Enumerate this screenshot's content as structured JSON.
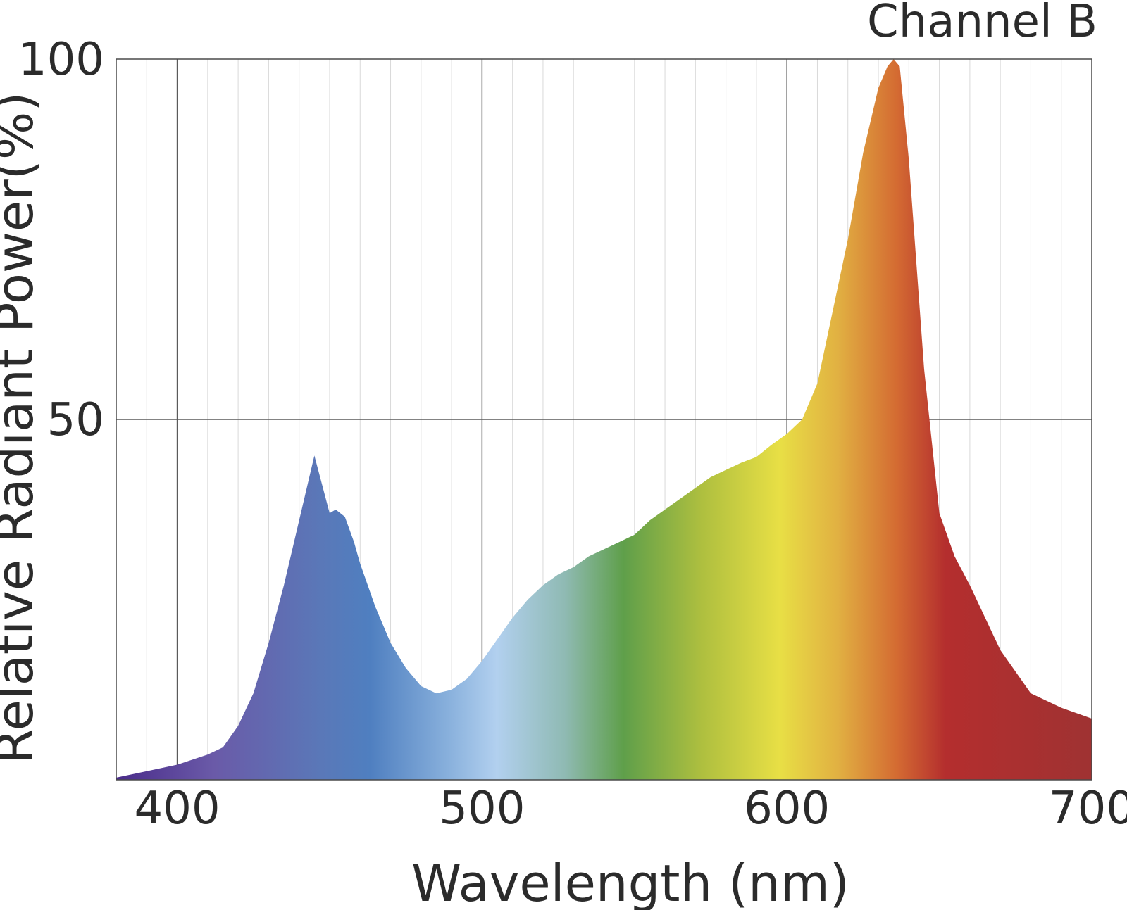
{
  "chart_data": {
    "type": "area",
    "title": "Channel B",
    "xlabel": "Wavelength (nm)",
    "ylabel": "Relative Radiant Power(%)",
    "xlim": [
      380,
      700
    ],
    "ylim": [
      0,
      100
    ],
    "x_major_ticks": [
      400,
      500,
      600,
      700
    ],
    "x_tick_labels": [
      "400",
      "500",
      "600",
      "700"
    ],
    "x_minor_step": 10,
    "y_ticks": [
      50,
      100
    ],
    "y_tick_labels": [
      "50",
      "100"
    ],
    "grid": true,
    "fill": "spectral-gradient",
    "series": [
      {
        "x": [
          380,
          390,
          400,
          410,
          415,
          420,
          425,
          430,
          435,
          440,
          445,
          450,
          452,
          455,
          458,
          460,
          465,
          470,
          475,
          480,
          485,
          490,
          495,
          500,
          505,
          510,
          515,
          520,
          525,
          530,
          535,
          540,
          545,
          550,
          555,
          560,
          565,
          570,
          575,
          580,
          585,
          590,
          595,
          600,
          605,
          610,
          615,
          620,
          625,
          630,
          633,
          635,
          637,
          640,
          645,
          650,
          655,
          660,
          670,
          680,
          690,
          700
        ],
        "y": [
          0.3,
          1.2,
          2.1,
          3.5,
          4.5,
          7.5,
          12,
          19,
          27,
          36,
          45,
          37,
          37.5,
          36.5,
          33,
          30,
          24,
          19,
          15.5,
          13,
          12,
          12.5,
          14,
          16.5,
          19.5,
          22.5,
          25,
          27,
          28.5,
          29.5,
          31,
          32,
          33,
          34,
          36,
          37.5,
          39,
          40.5,
          42,
          43,
          44,
          44.8,
          46.5,
          48,
          50,
          55,
          65,
          75,
          87,
          96,
          99,
          100,
          99,
          86,
          57,
          37,
          31,
          27,
          18,
          12,
          10,
          8.5
        ]
      }
    ]
  }
}
